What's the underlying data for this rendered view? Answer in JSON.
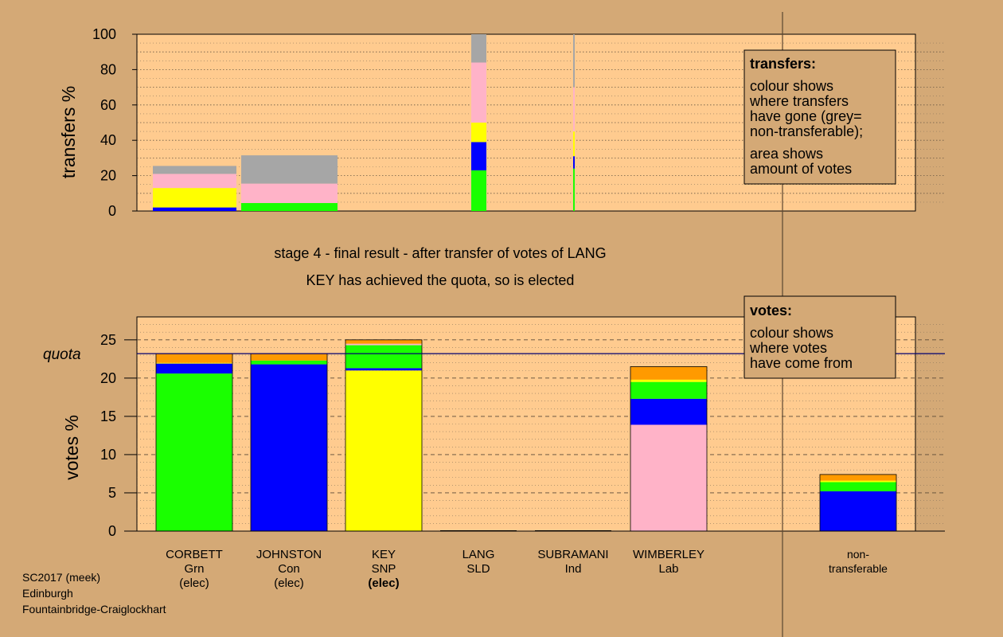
{
  "colors": {
    "background": "#D4A976",
    "plot_background": "#FFCB8F",
    "legend_box": "#D4A976",
    "green": "#1AFF00",
    "blue": "#0000FF",
    "yellow": "#FFFF00",
    "pink": "#FFB3C8",
    "orange": "#FF9A00",
    "grey": "#A6A6A6",
    "navy": "#000070"
  },
  "stage_line1": "stage 4 - final result - after transfer of votes of LANG",
  "stage_line2": "KEY has achieved the quota, so is elected",
  "footer": [
    "SC2017 (meek)",
    "Edinburgh",
    "Fountainbridge-Craiglockhart"
  ],
  "transfers_key": {
    "title": "transfers:",
    "lines1": [
      "colour shows",
      "where transfers",
      "have gone (grey=",
      "non-transferable);"
    ],
    "lines2": [
      "area shows",
      "amount of votes"
    ]
  },
  "votes_key": {
    "title": "votes:",
    "lines": [
      "colour shows",
      "where votes",
      "have come from"
    ]
  },
  "candidates": [
    {
      "name": "CORBETT",
      "party": "Grn",
      "status": "(elec)"
    },
    {
      "name": "JOHNSTON",
      "party": "Con",
      "status": "(elec)"
    },
    {
      "name": "KEY",
      "party": "SNP",
      "status": "(elec)"
    },
    {
      "name": "LANG",
      "party": "SLD",
      "status": ""
    },
    {
      "name": "SUBRAMANI",
      "party": "Ind",
      "status": ""
    },
    {
      "name": "WIMBERLEY",
      "party": "Lab",
      "status": ""
    },
    {
      "name": "non-",
      "party": "transferable",
      "status": ""
    }
  ],
  "chart_data": [
    {
      "type": "bar",
      "ylabel": "transfers %",
      "ylim": [
        0,
        100
      ],
      "yticks": [
        0,
        20,
        40,
        60,
        80,
        100
      ],
      "note": "stacked transfer columns, widths proportional to vote amount",
      "columns": [
        {
          "segments": [
            {
              "color": "blue",
              "value": 2
            },
            {
              "color": "yellow",
              "value": 11
            },
            {
              "color": "pink",
              "value": 8
            },
            {
              "color": "grey",
              "value": 4.5
            }
          ]
        },
        {
          "segments": [
            {
              "color": "green",
              "value": 4.5
            },
            {
              "color": "pink",
              "value": 11
            },
            {
              "color": "grey",
              "value": 16
            }
          ]
        },
        {
          "segments": [
            {
              "color": "green",
              "value": 23
            },
            {
              "color": "blue",
              "value": 16
            },
            {
              "color": "yellow",
              "value": 11
            },
            {
              "color": "pink",
              "value": 34
            },
            {
              "color": "grey",
              "value": 16
            }
          ]
        },
        {
          "segments": [
            {
              "color": "green",
              "value": 24
            },
            {
              "color": "blue",
              "value": 7
            },
            {
              "color": "yellow",
              "value": 14
            },
            {
              "color": "pink",
              "value": 25
            },
            {
              "color": "grey",
              "value": 30
            }
          ]
        }
      ]
    },
    {
      "type": "bar",
      "ylabel": "votes %",
      "ylim": [
        0,
        28
      ],
      "yticks": [
        0,
        5,
        10,
        15,
        20,
        25
      ],
      "quota": 23.2,
      "quota_label": "quota",
      "categories": [
        "CORBETT",
        "JOHNSTON",
        "KEY",
        "LANG",
        "SUBRAMANI",
        "WIMBERLEY",
        "non-transferable"
      ],
      "stacks": [
        [
          {
            "color": "green",
            "value": 20.6
          },
          {
            "color": "blue",
            "value": 1.3
          },
          {
            "color": "yellow",
            "value": 0.1
          },
          {
            "color": "orange",
            "value": 1.2
          }
        ],
        [
          {
            "color": "blue",
            "value": 21.8
          },
          {
            "color": "green",
            "value": 0.5
          },
          {
            "color": "orange",
            "value": 0.9
          }
        ],
        [
          {
            "color": "yellow",
            "value": 21.0
          },
          {
            "color": "blue",
            "value": 0.3
          },
          {
            "color": "green",
            "value": 3.0
          },
          {
            "color": "pink",
            "value": 0.2
          },
          {
            "color": "orange",
            "value": 0.5
          }
        ],
        [],
        [],
        [
          {
            "color": "pink",
            "value": 13.9
          },
          {
            "color": "blue",
            "value": 3.4
          },
          {
            "color": "green",
            "value": 2.2
          },
          {
            "color": "yellow",
            "value": 0.3
          },
          {
            "color": "orange",
            "value": 1.7
          }
        ],
        [
          {
            "color": "blue",
            "value": 5.2
          },
          {
            "color": "green",
            "value": 1.2
          },
          {
            "color": "yellow",
            "value": 0.2
          },
          {
            "color": "orange",
            "value": 0.8
          }
        ]
      ]
    }
  ]
}
